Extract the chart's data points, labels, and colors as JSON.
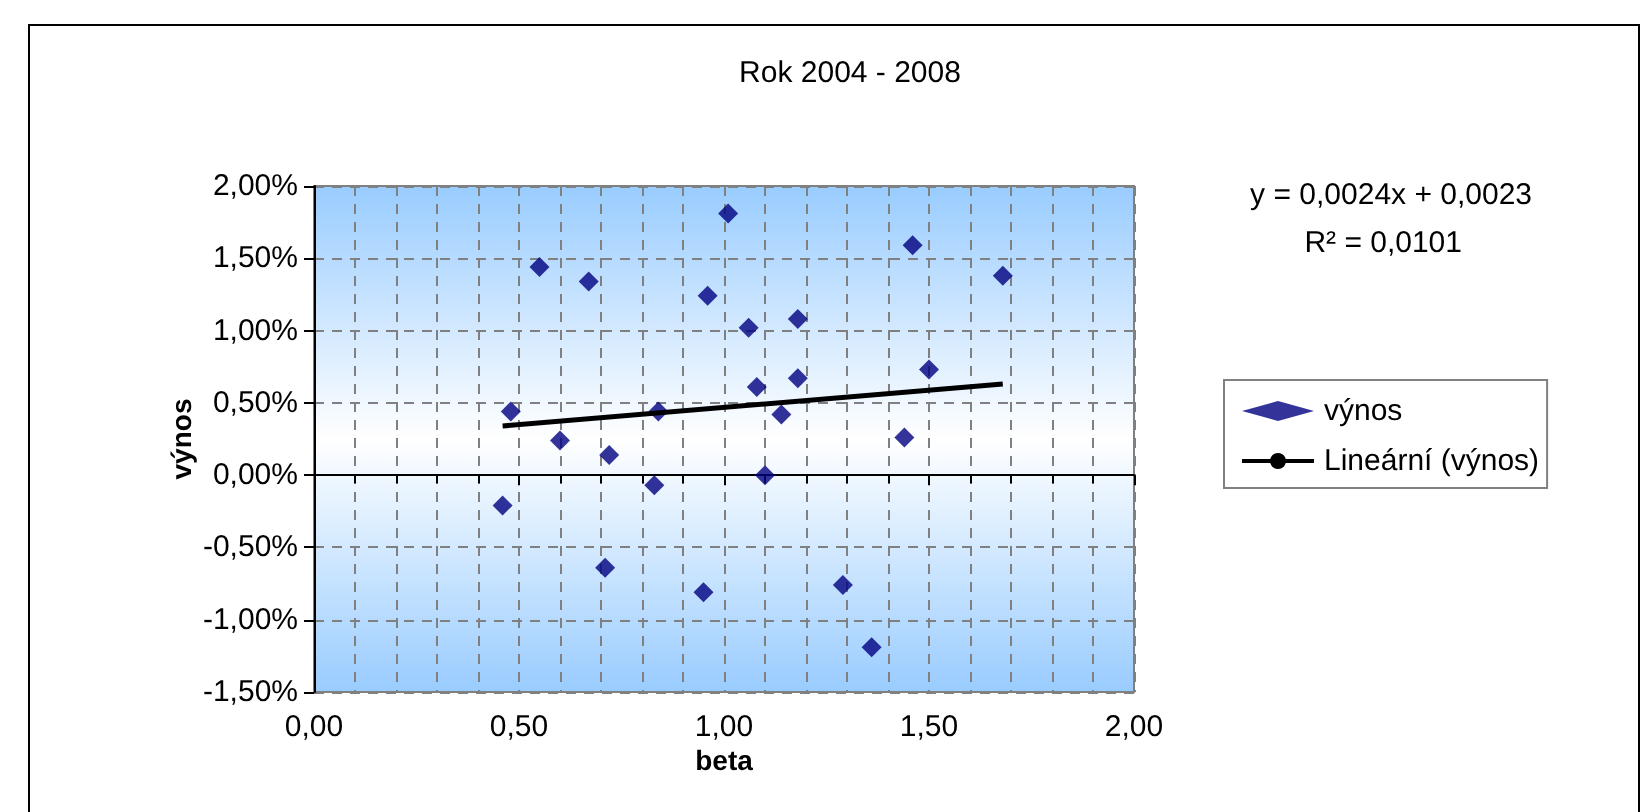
{
  "chart_data": {
    "type": "scatter",
    "title": "Rok 2004 - 2008",
    "xlabel": "beta",
    "ylabel": "výnos",
    "annotations": [
      "y = 0,0024x + 0,0023",
      "R² = 0,0101"
    ],
    "xlim": [
      0,
      2
    ],
    "ylim": [
      -1.5,
      2
    ],
    "xticks": [
      {
        "value": 0,
        "label": "0,00"
      },
      {
        "value": 0.5,
        "label": "0,50"
      },
      {
        "value": 1,
        "label": "1,00"
      },
      {
        "value": 1.5,
        "label": "1,50"
      },
      {
        "value": 2,
        "label": "2,00"
      }
    ],
    "yticks": [
      {
        "value": -1.5,
        "label": "-1,50%"
      },
      {
        "value": -1,
        "label": "-1,00%"
      },
      {
        "value": -0.5,
        "label": "-0,50%"
      },
      {
        "value": 0,
        "label": "0,00%"
      },
      {
        "value": 0.5,
        "label": "0,50%"
      },
      {
        "value": 1,
        "label": "1,00%"
      },
      {
        "value": 1.5,
        "label": "1,50%"
      },
      {
        "value": 2,
        "label": "2,00%"
      }
    ],
    "grid": true,
    "legend": "right",
    "marker": "diamond",
    "series": [
      {
        "name": "výnos",
        "color": "#000080",
        "x": [
          0.46,
          0.48,
          0.55,
          0.6,
          0.67,
          0.72,
          0.71,
          0.83,
          0.84,
          0.96,
          0.95,
          1.01,
          1.06,
          1.08,
          1.1,
          1.14,
          1.18,
          1.18,
          1.29,
          1.36,
          1.46,
          1.68,
          1.5,
          1.44
        ],
        "values": [
          -0.21,
          0.44,
          1.44,
          0.24,
          1.34,
          0.14,
          -0.64,
          -0.07,
          0.44,
          1.24,
          -0.81,
          1.81,
          1.02,
          0.61,
          0.0,
          0.42,
          1.08,
          0.67,
          -0.76,
          -1.19,
          1.59,
          1.38,
          0.73,
          0.26
        ]
      },
      {
        "name": "Lineární (výnos)",
        "type": "line",
        "color": "#000000",
        "x": [
          0.46,
          1.68
        ],
        "values": [
          0.34,
          0.63
        ],
        "marker": "none",
        "line_style": "solid"
      }
    ]
  }
}
